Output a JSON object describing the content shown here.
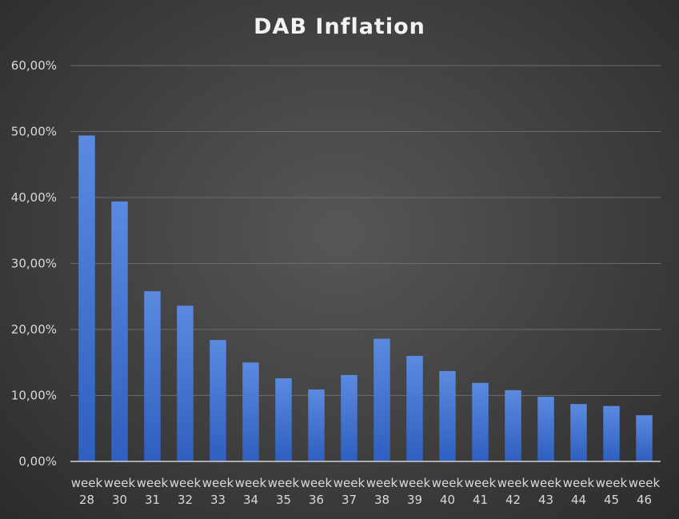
{
  "chart_data": {
    "type": "bar",
    "title": "DAB Inflation",
    "xlabel": "",
    "ylabel": "",
    "ylim": [
      0,
      60
    ],
    "yticks": [
      "0,00%",
      "10,00%",
      "20,00%",
      "30,00%",
      "40,00%",
      "50,00%",
      "60,00%"
    ],
    "categories": [
      [
        "week",
        "28"
      ],
      [
        "week",
        "30"
      ],
      [
        "week",
        "31"
      ],
      [
        "week",
        "32"
      ],
      [
        "week",
        "33"
      ],
      [
        "week",
        "34"
      ],
      [
        "week",
        "35"
      ],
      [
        "week",
        "36"
      ],
      [
        "week",
        "37"
      ],
      [
        "week",
        "38"
      ],
      [
        "week",
        "39"
      ],
      [
        "week",
        "40"
      ],
      [
        "week",
        "41"
      ],
      [
        "week",
        "42"
      ],
      [
        "week",
        "43"
      ],
      [
        "week",
        "44"
      ],
      [
        "week",
        "45"
      ],
      [
        "week",
        "46"
      ]
    ],
    "values": [
      49.4,
      39.4,
      25.8,
      23.6,
      18.4,
      15.0,
      12.6,
      10.9,
      13.1,
      18.6,
      16.0,
      13.7,
      11.9,
      10.8,
      9.8,
      8.7,
      8.4,
      7.0
    ],
    "grid": true,
    "legend": "none",
    "colors": {
      "bar_top": "#5b8ae0",
      "bar_bottom": "#2f5fbf",
      "grid": "#6b6b6b",
      "axis": "#d0d0d0"
    }
  }
}
